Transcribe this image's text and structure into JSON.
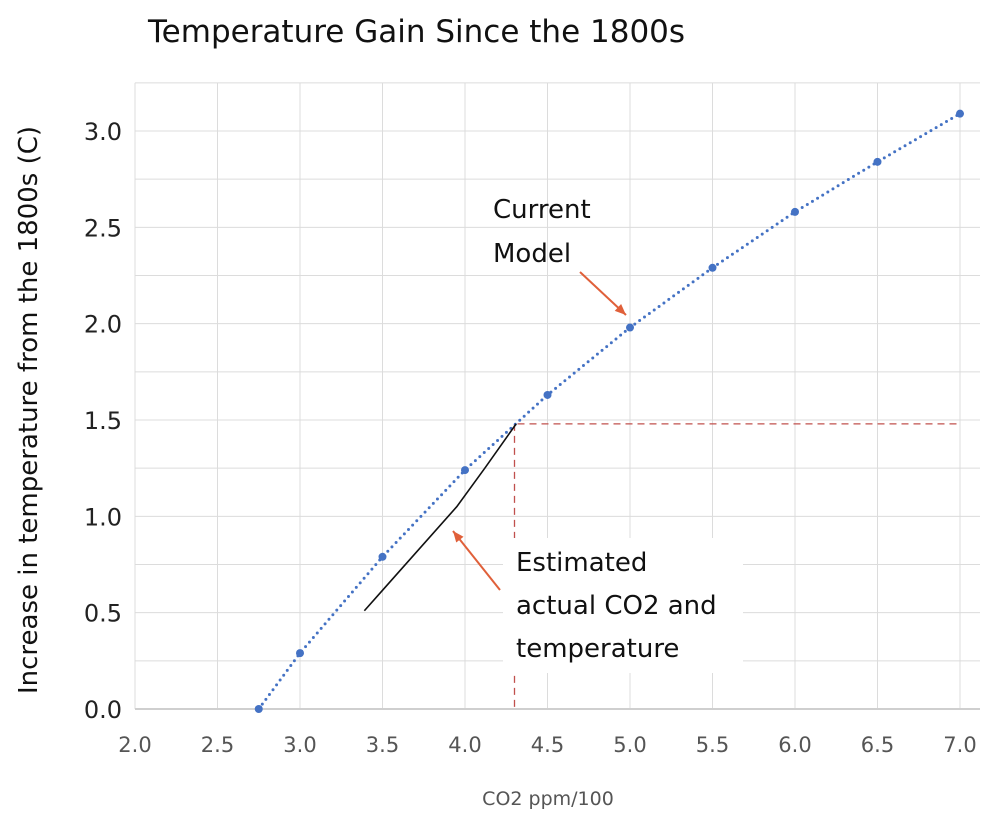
{
  "chart_data": {
    "type": "line",
    "title": "Temperature Gain Since the 1800s",
    "xlabel": "CO2 ppm/100",
    "ylabel": "Increase in temperature from the 1800s (C)",
    "xlim": [
      2.0,
      7.0
    ],
    "ylim": [
      0.0,
      3.25
    ],
    "x_ticks": [
      "2.0",
      "2.5",
      "3.0",
      "3.5",
      "4.0",
      "4.5",
      "5.0",
      "5.5",
      "6.0",
      "6.5",
      "7.0"
    ],
    "y_ticks": [
      "0.0",
      "0.5",
      "1.0",
      "1.5",
      "2.0",
      "2.5",
      "3.0"
    ],
    "grid": true,
    "series": [
      {
        "name": "Current Model",
        "style": "dotted-with-markers",
        "color": "#4472c4",
        "x": [
          2.75,
          3.0,
          3.5,
          4.0,
          4.5,
          5.0,
          5.5,
          6.0,
          6.5,
          7.0
        ],
        "y": [
          0.0,
          0.29,
          0.79,
          1.24,
          1.63,
          1.98,
          2.29,
          2.58,
          2.84,
          3.09
        ]
      },
      {
        "name": "Estimated actual CO2 and temperature",
        "style": "solid",
        "color": "#111111",
        "x": [
          3.39,
          3.95,
          4.12,
          4.31
        ],
        "y": [
          0.51,
          1.05,
          1.25,
          1.48
        ]
      }
    ],
    "reference_lines": {
      "color": "#c0504d",
      "horizontal_y": 1.48,
      "vertical_x": 4.3
    },
    "annotations": [
      {
        "lines": [
          "Current",
          "Model"
        ],
        "arrow_color": "#e0603a"
      },
      {
        "lines": [
          "Estimated",
          "actual CO2 and",
          "temperature"
        ],
        "arrow_color": "#e0603a"
      }
    ]
  }
}
